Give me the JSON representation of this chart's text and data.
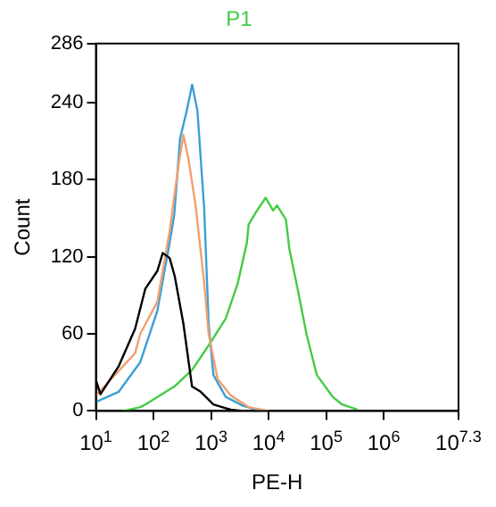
{
  "chart_data": {
    "type": "line",
    "title": "P1",
    "xlabel": "PE-H",
    "ylabel": "Count",
    "log": "x",
    "xlim": [
      10,
      19952623
    ],
    "xticks": [
      {
        "value": 10,
        "label": "10$^{1}$"
      },
      {
        "value": 100,
        "label": "10$^{2}$"
      },
      {
        "value": 1000,
        "label": "10$^{3}$"
      },
      {
        "value": 10000,
        "label": "10$^{4}$"
      },
      {
        "value": 100000,
        "label": "10$^{5}$"
      },
      {
        "value": 1000000,
        "label": "10$^{6}$"
      },
      {
        "value": 19952623,
        "label": "10$^{7.3}$"
      }
    ],
    "ylim": [
      0,
      286
    ],
    "yticks": [
      0,
      60,
      120,
      180,
      240,
      286
    ],
    "grid": false,
    "legend": false,
    "marker": "none",
    "line_style": "solid",
    "series": [
      {
        "color": "#000000",
        "x": [
          10,
          12,
          25,
          48,
          72,
          117,
          145,
          191,
          234,
          331,
          468,
          661,
          1100,
          2200,
          3600
        ],
        "values": [
          24,
          13,
          35,
          64,
          95,
          109,
          123,
          119,
          105,
          68,
          19,
          15,
          5,
          1,
          0
        ]
      },
      {
        "color": "#f0a070",
        "x": [
          10,
          48,
          59,
          117,
          191,
          270,
          331,
          410,
          540,
          760,
          910,
          1300,
          2200,
          4500,
          10000
        ],
        "values": [
          12,
          45,
          60,
          85,
          140,
          190,
          215,
          195,
          160,
          100,
          60,
          25,
          12,
          3,
          0
        ]
      },
      {
        "color": "#3a9fd6",
        "x": [
          10,
          25,
          59,
          117,
          191,
          230,
          290,
          380,
          470,
          580,
          760,
          910,
          1100,
          1800,
          3600,
          7200
        ],
        "values": [
          7,
          15,
          38,
          78,
          131,
          153,
          212,
          234,
          254,
          234,
          158,
          68,
          28,
          11,
          4,
          0
        ]
      },
      {
        "color": "#44cc44",
        "x": [
          30,
          59,
          72,
          230,
          470,
          910,
          1800,
          2900,
          4200,
          4500,
          6300,
          8900,
          12000,
          14000,
          20000,
          23000,
          32000,
          46000,
          69000,
          130000,
          190000,
          350000
        ],
        "values": [
          0,
          3,
          5,
          19,
          32,
          51,
          72,
          99,
          131,
          145,
          156,
          166,
          156,
          160,
          149,
          126,
          95,
          59,
          28,
          11,
          5,
          1
        ]
      }
    ]
  }
}
